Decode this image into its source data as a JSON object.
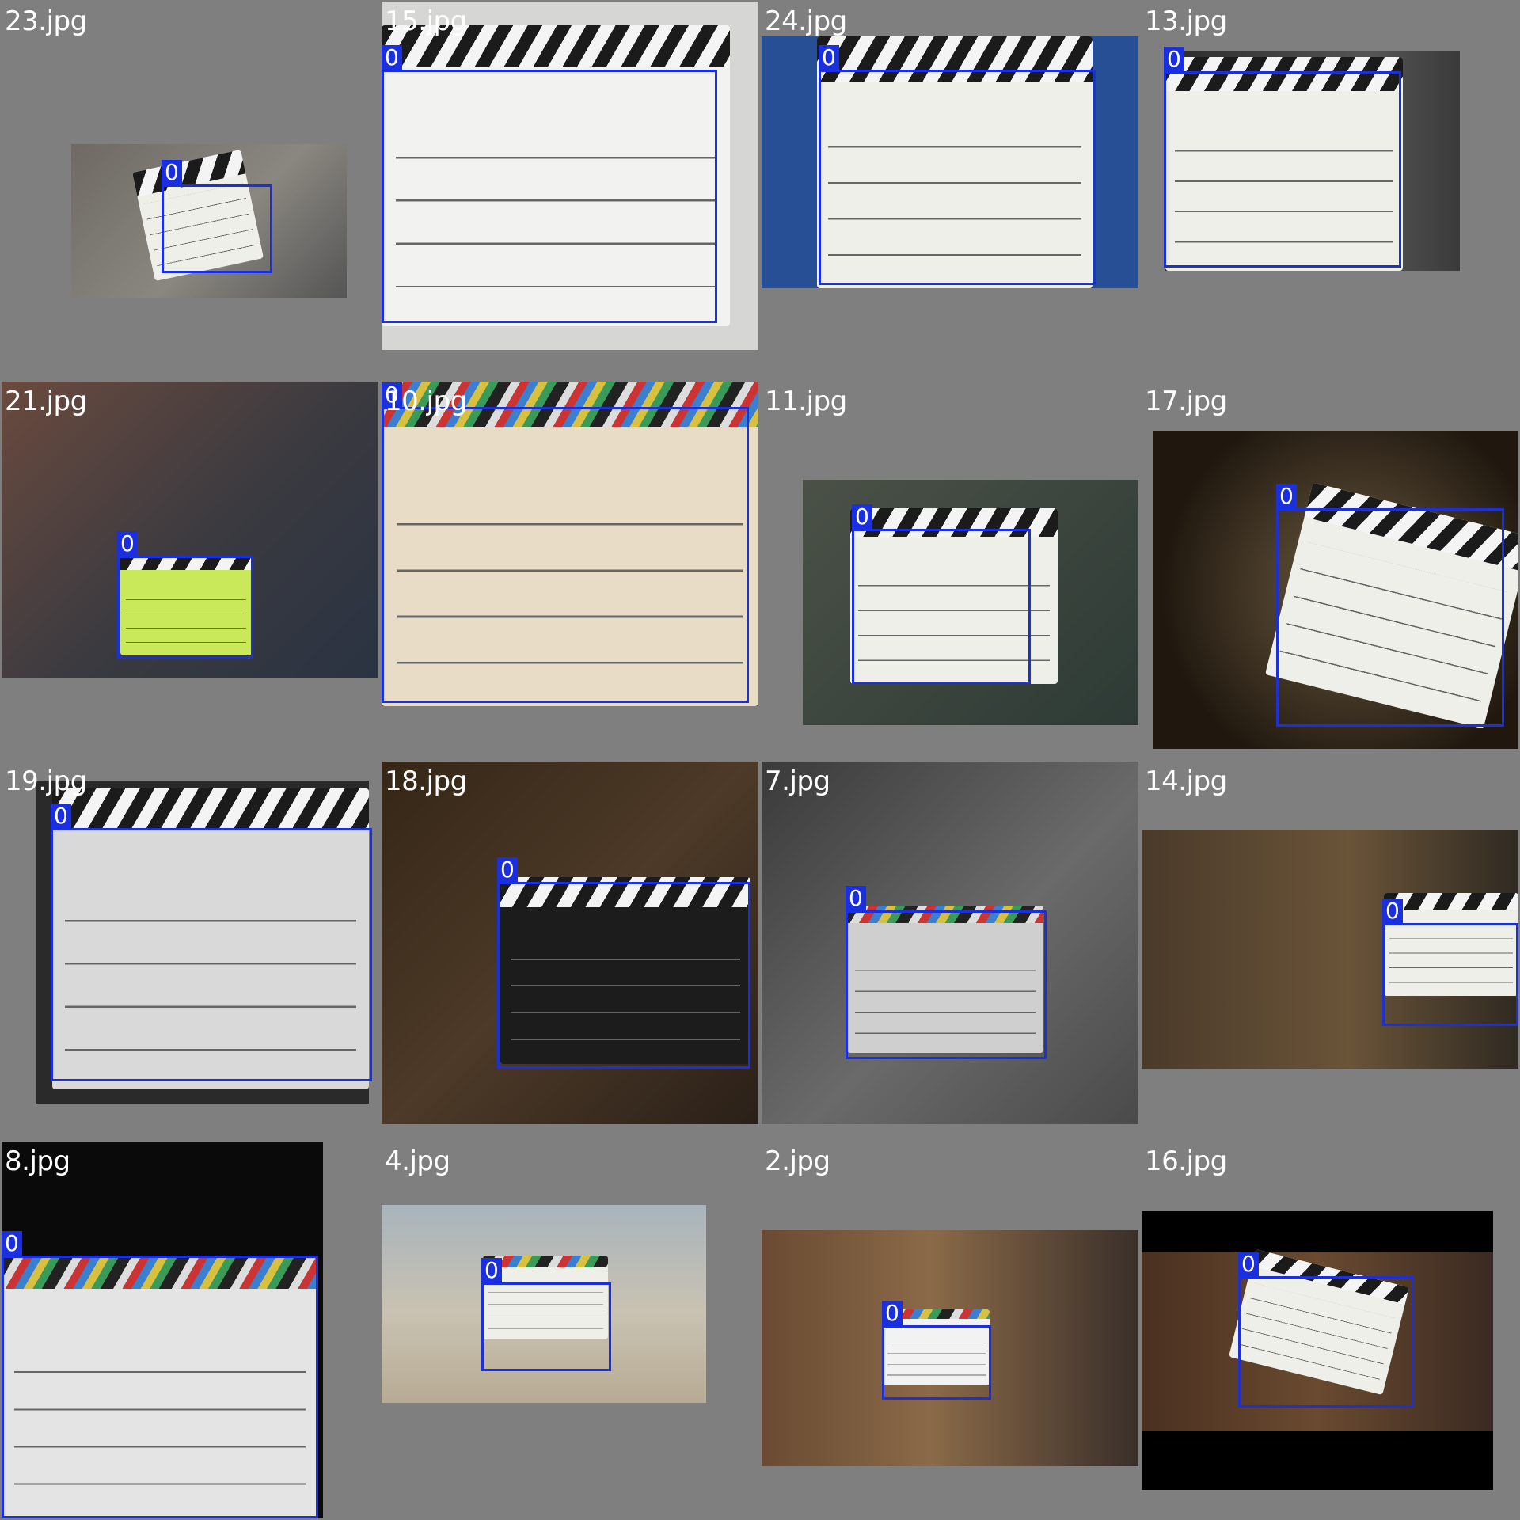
{
  "grid": {
    "label_color": "#ffffff",
    "box_color": "#1a2fe0",
    "background": "#7f7f7f",
    "cells": [
      {
        "file": "23.jpg",
        "class_id": "0"
      },
      {
        "file": "15.jpg",
        "class_id": "0"
      },
      {
        "file": "24.jpg",
        "class_id": "0"
      },
      {
        "file": "13.jpg",
        "class_id": "0"
      },
      {
        "file": "21.jpg",
        "class_id": "0"
      },
      {
        "file": "10.jpg",
        "class_id": "0"
      },
      {
        "file": "11.jpg",
        "class_id": "0"
      },
      {
        "file": "17.jpg",
        "class_id": "0"
      },
      {
        "file": "19.jpg",
        "class_id": "0"
      },
      {
        "file": "18.jpg",
        "class_id": "0"
      },
      {
        "file": "7.jpg",
        "class_id": "0"
      },
      {
        "file": "14.jpg",
        "class_id": "0"
      },
      {
        "file": "8.jpg",
        "class_id": "0"
      },
      {
        "file": "4.jpg",
        "class_id": "0"
      },
      {
        "file": "2.jpg",
        "class_id": "0"
      },
      {
        "file": "16.jpg",
        "class_id": "0"
      }
    ]
  }
}
